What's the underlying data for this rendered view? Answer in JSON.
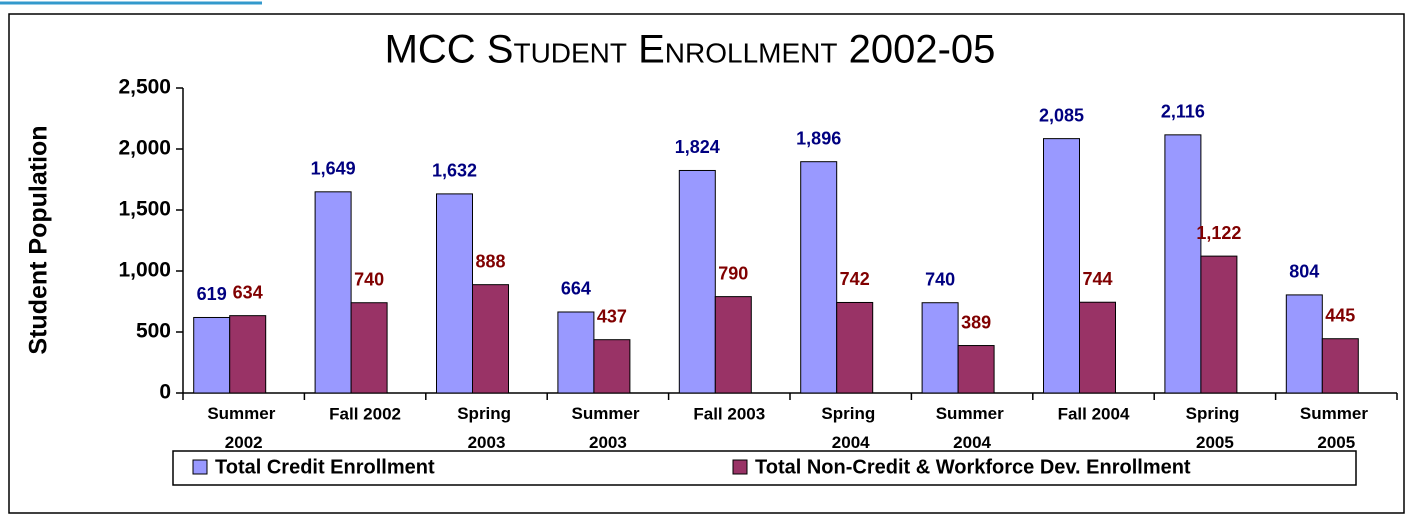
{
  "chart_data": {
    "type": "bar",
    "title": "MCC Student Enrollment 2002-05",
    "y_label": "Student Population",
    "categories": [
      "Summer 2002",
      "Fall 2002",
      "Spring 2003",
      "Summer 2003",
      "Fall 2003",
      "Spring 2004",
      "Summer 2004",
      "Fall 2004",
      "Spring 2005",
      "Summer 2005"
    ],
    "series": [
      {
        "name": "Total Credit Enrollment",
        "color": "#9999ff",
        "label_color": "#000080",
        "values": [
          619,
          1649,
          1632,
          664,
          1824,
          1896,
          740,
          2085,
          2116,
          804
        ],
        "value_labels": [
          "619",
          "1,649",
          "1,632",
          "664",
          "1,824",
          "1,896",
          "740",
          "2,085",
          "2,116",
          "804"
        ]
      },
      {
        "name": "Total Non-Credit & Workforce Dev. Enrollment",
        "color": "#993366",
        "label_color": "#800000",
        "values": [
          634,
          740,
          888,
          437,
          790,
          742,
          389,
          744,
          1122,
          445
        ],
        "value_labels": [
          "634",
          "740",
          "888",
          "437",
          "790",
          "742",
          "389",
          "744",
          "1,122",
          "445"
        ]
      }
    ],
    "ylim": [
      0,
      2500
    ],
    "yticks": [
      0,
      500,
      {
        "value": 1000,
        "label": "1,000"
      },
      {
        "value": 1500,
        "label": "1,500"
      },
      {
        "value": 2000,
        "label": "2,000"
      },
      {
        "value": 2500,
        "label": "2,500"
      }
    ],
    "grid": false,
    "legend": "bottom"
  }
}
